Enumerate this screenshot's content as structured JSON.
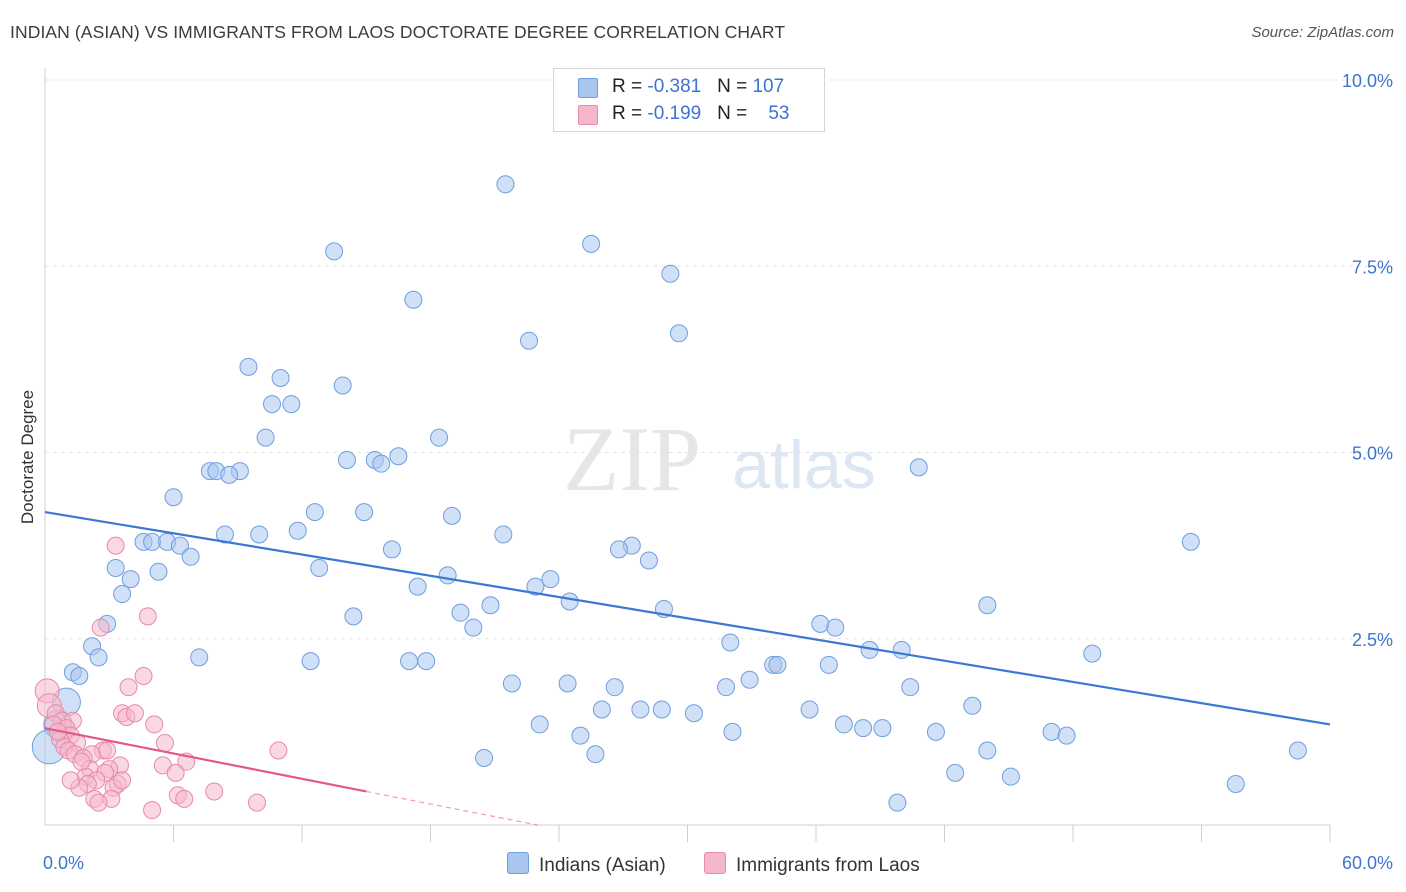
{
  "title": "INDIAN (ASIAN) VS IMMIGRANTS FROM LAOS DOCTORATE DEGREE CORRELATION CHART",
  "source": "Source: ZipAtlas.com",
  "watermark": {
    "zip": "ZIP",
    "atlas": "atlas"
  },
  "legend": [
    {
      "r_label": "R = ",
      "r_value": "-0.381",
      "n_label": "N = ",
      "n_value": "107",
      "color": "#a9c6ef",
      "border": "#6f9ee0"
    },
    {
      "r_label": "R = ",
      "r_value": "-0.199",
      "n_label": "N = ",
      "n_value": "53",
      "color": "#f5b8cb",
      "border": "#e88aa8"
    }
  ],
  "bottom_legend": [
    {
      "label": "Indians (Asian)",
      "color": "#a9c6ef",
      "border": "#6f9ee0"
    },
    {
      "label": "Immigrants from Laos",
      "color": "#f5b8cb",
      "border": "#e88aa8"
    }
  ],
  "chart_data": {
    "type": "scatter",
    "title": "INDIAN (ASIAN) VS IMMIGRANTS FROM LAOS DOCTORATE DEGREE CORRELATION CHART",
    "xlabel": "",
    "ylabel": "Doctorate Degree",
    "xlim": [
      0,
      60
    ],
    "ylim": [
      0,
      10
    ],
    "x_ticks": [
      {
        "value": 0,
        "label": "0.0%"
      },
      {
        "value": 60,
        "label": "60.0%"
      }
    ],
    "y_ticks": [
      {
        "value": 2.5,
        "label": "2.5%"
      },
      {
        "value": 5.0,
        "label": "5.0%"
      },
      {
        "value": 7.5,
        "label": "7.5%"
      },
      {
        "value": 10.0,
        "label": "10.0%"
      }
    ],
    "grid": true,
    "series": [
      {
        "name": "Indians (Asian)",
        "color": "#a9c6ef",
        "stroke": "#6f9ee0",
        "trend": {
          "x": [
            0,
            60
          ],
          "y": [
            4.2,
            1.35
          ],
          "color": "#3a78d4"
        },
        "points": [
          [
            21.5,
            8.6
          ],
          [
            25.5,
            7.8
          ],
          [
            13.5,
            7.7
          ],
          [
            29.2,
            7.4
          ],
          [
            17.2,
            7.05
          ],
          [
            22.6,
            6.5
          ],
          [
            29.6,
            6.6
          ],
          [
            9.5,
            6.15
          ],
          [
            11.0,
            6.0
          ],
          [
            13.9,
            5.9
          ],
          [
            10.6,
            5.65
          ],
          [
            11.5,
            5.65
          ],
          [
            10.3,
            5.2
          ],
          [
            18.4,
            5.2
          ],
          [
            14.1,
            4.9
          ],
          [
            15.4,
            4.9
          ],
          [
            15.7,
            4.85
          ],
          [
            16.5,
            4.95
          ],
          [
            40.8,
            4.8
          ],
          [
            7.7,
            4.75
          ],
          [
            8.0,
            4.75
          ],
          [
            9.1,
            4.75
          ],
          [
            8.6,
            4.7
          ],
          [
            6.0,
            4.4
          ],
          [
            12.6,
            4.2
          ],
          [
            14.9,
            4.2
          ],
          [
            19.0,
            4.15
          ],
          [
            11.8,
            3.95
          ],
          [
            21.4,
            3.9
          ],
          [
            8.4,
            3.9
          ],
          [
            10.0,
            3.9
          ],
          [
            4.6,
            3.8
          ],
          [
            5.0,
            3.8
          ],
          [
            5.7,
            3.8
          ],
          [
            6.3,
            3.75
          ],
          [
            27.4,
            3.75
          ],
          [
            26.8,
            3.7
          ],
          [
            16.2,
            3.7
          ],
          [
            53.5,
            3.8
          ],
          [
            6.8,
            3.6
          ],
          [
            28.2,
            3.55
          ],
          [
            3.3,
            3.45
          ],
          [
            12.8,
            3.45
          ],
          [
            5.3,
            3.4
          ],
          [
            18.8,
            3.35
          ],
          [
            4.0,
            3.3
          ],
          [
            23.6,
            3.3
          ],
          [
            22.9,
            3.2
          ],
          [
            17.4,
            3.2
          ],
          [
            3.6,
            3.1
          ],
          [
            24.5,
            3.0
          ],
          [
            44.0,
            2.95
          ],
          [
            20.8,
            2.95
          ],
          [
            28.9,
            2.9
          ],
          [
            19.4,
            2.85
          ],
          [
            14.4,
            2.8
          ],
          [
            2.9,
            2.7
          ],
          [
            36.2,
            2.7
          ],
          [
            36.9,
            2.65
          ],
          [
            20.0,
            2.65
          ],
          [
            2.2,
            2.4
          ],
          [
            32.0,
            2.45
          ],
          [
            38.5,
            2.35
          ],
          [
            40.0,
            2.35
          ],
          [
            48.9,
            2.3
          ],
          [
            2.5,
            2.25
          ],
          [
            7.2,
            2.25
          ],
          [
            12.4,
            2.2
          ],
          [
            17.0,
            2.2
          ],
          [
            17.8,
            2.2
          ],
          [
            34.0,
            2.15
          ],
          [
            34.2,
            2.15
          ],
          [
            36.6,
            2.15
          ],
          [
            1.3,
            2.05
          ],
          [
            1.6,
            2.0
          ],
          [
            32.9,
            1.95
          ],
          [
            21.8,
            1.9
          ],
          [
            24.4,
            1.9
          ],
          [
            26.6,
            1.85
          ],
          [
            31.8,
            1.85
          ],
          [
            40.4,
            1.85
          ],
          [
            1.0,
            1.65
          ],
          [
            43.3,
            1.6
          ],
          [
            26.0,
            1.55
          ],
          [
            27.8,
            1.55
          ],
          [
            28.8,
            1.55
          ],
          [
            35.7,
            1.55
          ],
          [
            30.3,
            1.5
          ],
          [
            0.6,
            1.35
          ],
          [
            23.1,
            1.35
          ],
          [
            37.3,
            1.35
          ],
          [
            38.2,
            1.3
          ],
          [
            39.1,
            1.3
          ],
          [
            32.1,
            1.25
          ],
          [
            41.6,
            1.25
          ],
          [
            47.0,
            1.25
          ],
          [
            47.7,
            1.2
          ],
          [
            25.0,
            1.2
          ],
          [
            44.0,
            1.0
          ],
          [
            25.7,
            0.95
          ],
          [
            58.5,
            1.0
          ],
          [
            20.5,
            0.9
          ],
          [
            42.5,
            0.7
          ],
          [
            45.1,
            0.65
          ],
          [
            55.6,
            0.55
          ],
          [
            39.8,
            0.3
          ],
          [
            0.2,
            1.05
          ]
        ]
      },
      {
        "name": "Immigrants from Laos",
        "color": "#f5b8cb",
        "stroke": "#e88aa8",
        "trend": {
          "x": [
            0,
            15
          ],
          "y": [
            1.3,
            0.45
          ],
          "color": "#e5578a",
          "dash_to": [
            23,
            0.0
          ]
        },
        "points": [
          [
            0.1,
            1.8
          ],
          [
            0.2,
            1.6
          ],
          [
            3.3,
            3.75
          ],
          [
            4.8,
            2.8
          ],
          [
            2.6,
            2.65
          ],
          [
            4.6,
            2.0
          ],
          [
            3.9,
            1.85
          ],
          [
            0.5,
            1.5
          ],
          [
            3.6,
            1.5
          ],
          [
            3.8,
            1.45
          ],
          [
            0.8,
            1.4
          ],
          [
            1.3,
            1.4
          ],
          [
            0.4,
            1.35
          ],
          [
            1.0,
            1.3
          ],
          [
            5.1,
            1.35
          ],
          [
            1.2,
            1.2
          ],
          [
            0.7,
            1.15
          ],
          [
            5.6,
            1.1
          ],
          [
            1.5,
            1.1
          ],
          [
            0.9,
            1.05
          ],
          [
            1.1,
            1.0
          ],
          [
            2.7,
            1.0
          ],
          [
            10.9,
            1.0
          ],
          [
            1.4,
            0.95
          ],
          [
            2.2,
            0.95
          ],
          [
            1.8,
            0.9
          ],
          [
            6.6,
            0.85
          ],
          [
            3.5,
            0.8
          ],
          [
            5.5,
            0.8
          ],
          [
            2.1,
            0.75
          ],
          [
            3.0,
            0.75
          ],
          [
            2.8,
            0.7
          ],
          [
            6.1,
            0.7
          ],
          [
            1.9,
            0.65
          ],
          [
            2.4,
            0.6
          ],
          [
            2.0,
            0.55
          ],
          [
            3.4,
            0.55
          ],
          [
            1.6,
            0.5
          ],
          [
            3.2,
            0.5
          ],
          [
            7.9,
            0.45
          ],
          [
            6.2,
            0.4
          ],
          [
            2.3,
            0.35
          ],
          [
            3.1,
            0.35
          ],
          [
            2.5,
            0.3
          ],
          [
            6.5,
            0.35
          ],
          [
            9.9,
            0.3
          ],
          [
            5.0,
            0.2
          ],
          [
            0.6,
            1.25
          ],
          [
            1.7,
            0.85
          ],
          [
            2.9,
            1.0
          ],
          [
            4.2,
            1.5
          ],
          [
            1.2,
            0.6
          ],
          [
            3.6,
            0.6
          ]
        ]
      }
    ]
  }
}
